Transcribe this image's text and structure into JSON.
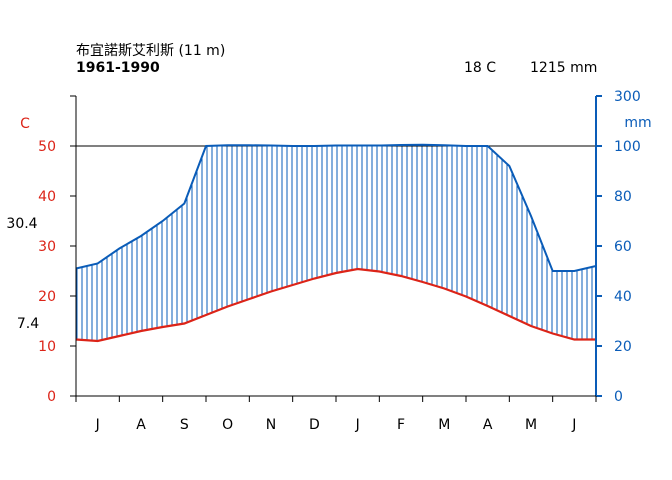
{
  "header": {
    "station": "布宜諾斯艾利斯 (11 m)",
    "period": "1961-1990",
    "mean_temp": "18 C",
    "annual_precip": "1215 mm"
  },
  "chart_data": {
    "type": "line",
    "title": "布宜諾斯艾利斯 (11 m)",
    "subtitle": "1961-1990",
    "categories": [
      "J",
      "A",
      "S",
      "O",
      "N",
      "D",
      "J",
      "F",
      "M",
      "A",
      "M",
      "J"
    ],
    "x": [
      0,
      0.5,
      1,
      1.5,
      2,
      2.5,
      3,
      3.5,
      4,
      4.5,
      5,
      5.5,
      6,
      6.5,
      7,
      7.5,
      8,
      8.5,
      9,
      9.5,
      10,
      10.5,
      11,
      11.5,
      12
    ],
    "series": [
      {
        "axis": "left",
        "color": "#dc2418",
        "values": [
          11.3,
          11.0,
          12.0,
          13.0,
          13.8,
          14.5,
          16.2,
          17.9,
          19.4,
          20.9,
          22.2,
          23.5,
          24.6,
          25.4,
          24.9,
          24.0,
          22.8,
          21.5,
          19.9,
          18.0,
          16.0,
          14.0,
          12.5,
          11.3,
          11.3
        ]
      },
      {
        "axis": "right",
        "color": "#0a5cb8",
        "values": [
          51,
          53,
          59,
          64,
          70,
          77,
          100,
          103,
          103,
          102,
          100,
          100,
          102,
          102,
          102,
          104,
          105,
          103,
          100,
          100,
          92,
          72,
          50,
          50,
          52
        ]
      }
    ],
    "left_axis": {
      "label": "C",
      "ticks": [
        0,
        10,
        20,
        30,
        40,
        50
      ],
      "range": [
        0,
        60
      ]
    },
    "right_axis": {
      "label": "mm",
      "ticks": [
        0,
        20,
        40,
        60,
        80,
        100,
        300
      ],
      "range": [
        0,
        300
      ],
      "scale_break": 100
    },
    "annotations": {
      "mean_daily_max": "30.4",
      "mean_daily_min": "7.4"
    },
    "colors": {
      "temperature": "#dc2418",
      "precipitation": "#0a5cb8",
      "axes": "#000000"
    }
  }
}
